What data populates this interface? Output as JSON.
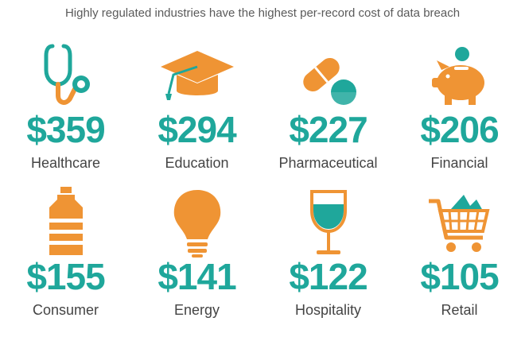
{
  "title": "Highly regulated industries have the highest per-record cost of data breach",
  "colors": {
    "teal": "#1fa79b",
    "orange": "#ef9434",
    "text": "#444444"
  },
  "industries": [
    {
      "value": "$359",
      "label": "Healthcare",
      "icon": "stethoscope-icon"
    },
    {
      "value": "$294",
      "label": "Education",
      "icon": "graduation-cap-icon"
    },
    {
      "value": "$227",
      "label": "Pharmaceutical",
      "icon": "pill-icon"
    },
    {
      "value": "$206",
      "label": "Financial",
      "icon": "piggy-bank-icon"
    },
    {
      "value": "$155",
      "label": "Consumer",
      "icon": "bottle-icon"
    },
    {
      "value": "$141",
      "label": "Energy",
      "icon": "light-bulb-icon"
    },
    {
      "value": "$122",
      "label": "Hospitality",
      "icon": "wine-glass-icon"
    },
    {
      "value": "$105",
      "label": "Retail",
      "icon": "shopping-cart-icon"
    }
  ]
}
